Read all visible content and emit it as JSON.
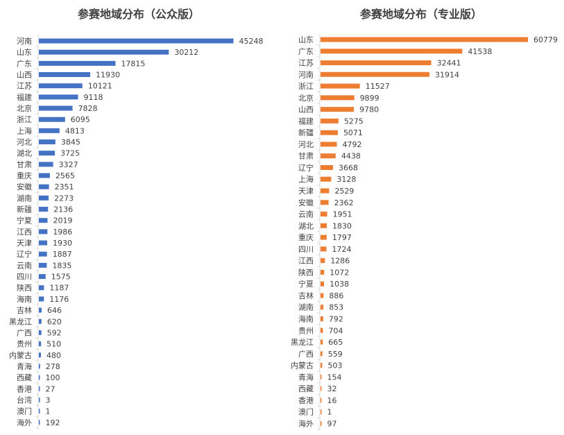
{
  "chart_data": [
    {
      "type": "bar",
      "orientation": "horizontal",
      "title": "参赛地域分布（公众版）",
      "color": "#4472c4",
      "xlim": [
        0,
        50000
      ],
      "grid": false,
      "categories": [
        "河南",
        "山东",
        "广东",
        "山西",
        "江苏",
        "福建",
        "北京",
        "浙江",
        "上海",
        "河北",
        "湖北",
        "甘肃",
        "重庆",
        "安徽",
        "湖南",
        "新疆",
        "宁夏",
        "江西",
        "天津",
        "辽宁",
        "云南",
        "四川",
        "陕西",
        "海南",
        "吉林",
        "黑龙江",
        "广西",
        "贵州",
        "内蒙古",
        "青海",
        "西藏",
        "香港",
        "台湾",
        "澳门",
        "海外"
      ],
      "values": [
        45248,
        30212,
        17815,
        11930,
        10121,
        9118,
        7828,
        6095,
        4813,
        3845,
        3725,
        3327,
        2565,
        2351,
        2273,
        2136,
        2019,
        1986,
        1930,
        1887,
        1835,
        1575,
        1187,
        1176,
        646,
        620,
        592,
        510,
        480,
        278,
        100,
        27,
        3,
        1,
        192
      ]
    },
    {
      "type": "bar",
      "orientation": "horizontal",
      "title": "参赛地域分布（专业版）",
      "color": "#ed7d31",
      "xlim": [
        0,
        62000
      ],
      "grid": false,
      "categories": [
        "山东",
        "广东",
        "江苏",
        "河南",
        "浙江",
        "北京",
        "山西",
        "福建",
        "新疆",
        "河北",
        "甘肃",
        "辽宁",
        "上海",
        "天津",
        "安徽",
        "云南",
        "湖北",
        "重庆",
        "四川",
        "江西",
        "陕西",
        "宁夏",
        "吉林",
        "湖南",
        "海南",
        "贵州",
        "黑龙江",
        "广西",
        "内蒙古",
        "青海",
        "西藏",
        "香港",
        "澳门",
        "海外"
      ],
      "values": [
        60779,
        41538,
        32441,
        31914,
        11527,
        9899,
        9780,
        5275,
        5071,
        4792,
        4438,
        3668,
        3128,
        2529,
        2362,
        1951,
        1830,
        1797,
        1724,
        1286,
        1072,
        1038,
        886,
        853,
        792,
        704,
        665,
        559,
        503,
        154,
        32,
        16,
        1,
        97
      ]
    }
  ]
}
